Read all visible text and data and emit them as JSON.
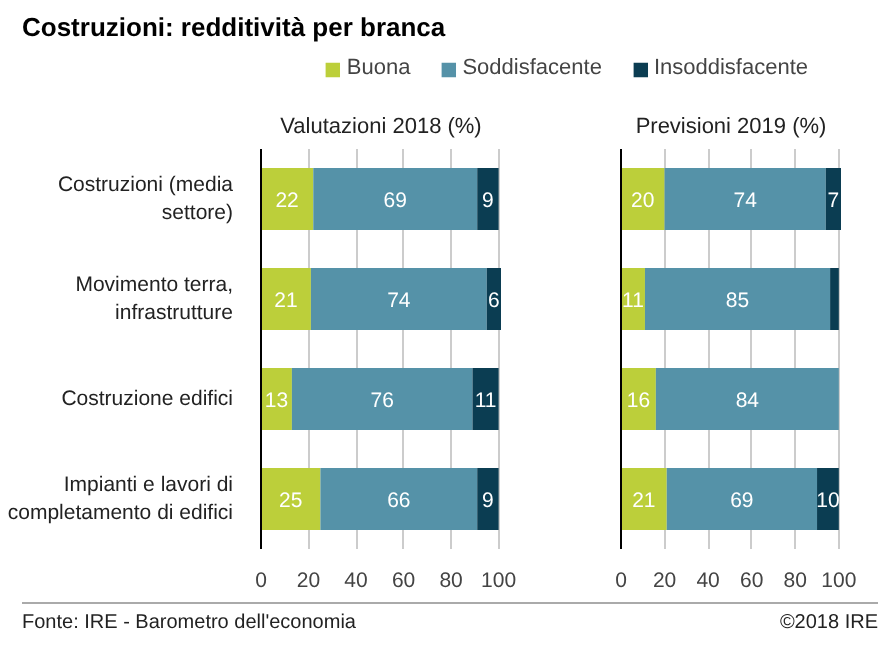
{
  "chart_data": [
    {
      "type": "bar",
      "orientation": "horizontal",
      "stacked": true,
      "title": "Costruzioni: redditività per branca",
      "subtitle": "Valutazioni 2018 (%)",
      "categories": [
        "Costruzioni (media settore)",
        "Movimento terra, infrastrutture",
        "Costruzione edifici",
        "Impianti e lavori di completamento di edifici"
      ],
      "series": [
        {
          "name": "Buona",
          "color": "#bccf3a",
          "values": [
            22,
            21,
            13,
            25
          ],
          "value_labels": [
            "22",
            "21",
            "13",
            "25"
          ]
        },
        {
          "name": "Soddisfacente",
          "color": "#5592a8",
          "values": [
            69,
            74,
            76,
            66
          ],
          "value_labels": [
            "69",
            "74",
            "76",
            "66"
          ]
        },
        {
          "name": "Insoddisfacente",
          "color": "#0b3d52",
          "values": [
            9,
            6,
            11,
            9
          ],
          "value_labels": [
            "9",
            "6",
            "11",
            "9"
          ]
        }
      ],
      "xlim": [
        0,
        101
      ],
      "xticks": [
        0,
        20,
        40,
        60,
        80,
        100
      ],
      "grid": "x",
      "legend": "top",
      "annotations": [
        "Fonte: IRE - Barometro dell'economia",
        "©2018 IRE"
      ]
    },
    {
      "type": "bar",
      "orientation": "horizontal",
      "stacked": true,
      "subtitle": "Previsioni 2019 (%)",
      "categories": [
        "Costruzioni (media settore)",
        "Movimento terra, infrastrutture",
        "Costruzione edifici",
        "Impianti e lavori di completamento di edifici"
      ],
      "series": [
        {
          "color": "#bccf3a",
          "values": [
            20,
            11,
            16,
            21
          ],
          "value_labels": [
            "20",
            "11",
            "16",
            "21"
          ]
        },
        {
          "color": "#5592a8",
          "values": [
            74,
            85,
            84,
            69
          ],
          "value_labels": [
            "74",
            "85",
            "84",
            "69"
          ]
        },
        {
          "color": "#0b3d52",
          "values": [
            7,
            4,
            0,
            10
          ],
          "value_labels": [
            "7",
            null,
            null,
            "10"
          ]
        }
      ],
      "xlim": [
        0,
        101
      ],
      "xticks": [
        0,
        20,
        40,
        60,
        80,
        100
      ],
      "grid": "x",
      "tick_labels": "x"
    }
  ]
}
